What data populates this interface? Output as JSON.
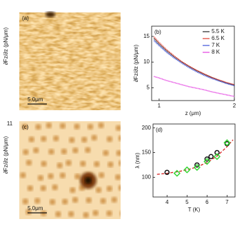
{
  "chart_data": [
    {
      "type": "image",
      "panel_label": "(a)",
      "colorbar_label": "∂Fz/∂z (pN/μm)",
      "scale_bar": "5.0μm"
    },
    {
      "type": "line",
      "panel_label": "(b)",
      "x_label": "z (μm)",
      "y_label": "∂Fz/∂z (pN/μm)",
      "x": [
        0.93,
        1.0,
        1.1,
        1.2,
        1.3,
        1.4,
        1.5,
        1.6,
        1.7,
        1.8,
        1.9,
        2.0
      ],
      "series": [
        {
          "name": "5.5 K",
          "color": "#222222",
          "values": [
            14.6,
            13.5,
            12.2,
            11.0,
            10.0,
            9.1,
            8.3,
            7.6,
            7.0,
            6.4,
            5.9,
            5.5
          ]
        },
        {
          "name": "6.5 K",
          "color": "#e0382c",
          "values": [
            14.9,
            13.8,
            12.4,
            11.2,
            10.1,
            9.2,
            8.4,
            7.7,
            7.0,
            6.5,
            6.0,
            5.6
          ]
        },
        {
          "name": "7 K",
          "color": "#3b4fd8",
          "values": [
            14.2,
            13.2,
            11.9,
            10.8,
            9.8,
            8.9,
            8.1,
            7.4,
            6.8,
            6.3,
            5.8,
            5.4
          ]
        },
        {
          "name": "8 K",
          "color": "#e23ce0",
          "values": [
            7.2,
            6.9,
            6.4,
            6.0,
            5.6,
            5.2,
            4.9,
            4.6,
            4.2,
            3.9,
            3.6,
            3.3
          ]
        }
      ],
      "xlim": [
        0.9,
        2.0
      ],
      "xticks": [
        1,
        2
      ],
      "ylim": [
        2.5,
        17
      ],
      "yticks": [
        5,
        10,
        15
      ],
      "legend": "top-right"
    },
    {
      "type": "image",
      "panel_label": "(c)",
      "colorbar_label": "∂Fz/∂z (pN/μm)",
      "colorbar_max": "11",
      "scale_bar": "5.0μm"
    },
    {
      "type": "scatter",
      "panel_label": "(d)",
      "x_label": "T (K)",
      "y_label": "λ (nm)",
      "series": [
        {
          "color": "#d62020",
          "marker": "dashed-line",
          "x": [
            3.5,
            4.0,
            4.5,
            5.0,
            5.5,
            6.0,
            6.5,
            7.0,
            7.3
          ],
          "values": [
            106,
            108,
            111,
            115,
            121,
            130,
            143,
            162,
            176
          ]
        },
        {
          "color": "#111111",
          "marker": "circle",
          "x": [
            4.0,
            5.5,
            6.0,
            6.2,
            6.5,
            7.0
          ],
          "values": [
            110,
            125,
            137,
            142,
            150,
            168
          ]
        },
        {
          "color": "#33d633",
          "marker": "diamond",
          "x": [
            4.5,
            5.0,
            5.5,
            6.0,
            6.5,
            7.0
          ],
          "values": [
            108,
            115,
            120,
            132,
            142,
            170
          ]
        }
      ],
      "xlim": [
        3.3,
        7.4
      ],
      "xticks": [
        4,
        5,
        6,
        7
      ],
      "ylim": [
        60,
        208
      ],
      "yticks": [
        100,
        150,
        200
      ]
    }
  ]
}
